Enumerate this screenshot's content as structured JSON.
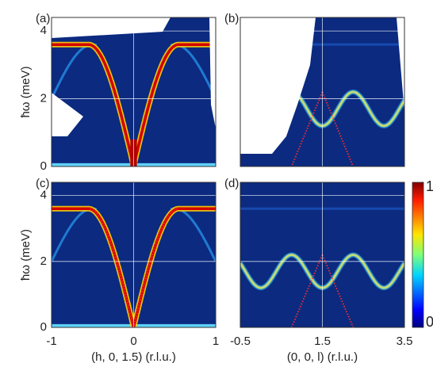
{
  "chart_data": [
    {
      "type": "heatmap",
      "panel_label": "(a)",
      "ylabel": "ħω (meV)",
      "xlim": [
        -1,
        1
      ],
      "xticks": [
        -1,
        0,
        1
      ],
      "ylim": [
        0,
        4.4
      ],
      "yticks": [
        0,
        2,
        4
      ],
      "xtick_labels": false,
      "ytick_labels": true,
      "grid": true
    },
    {
      "type": "heatmap",
      "panel_label": "(b)",
      "xlim": [
        -0.5,
        3.5
      ],
      "xticks": [
        -0.5,
        1.5,
        3.5
      ],
      "ylim": [
        0,
        4.4
      ],
      "yticks": [
        0,
        2,
        4
      ],
      "xtick_labels": false,
      "ytick_labels": false,
      "grid": true
    },
    {
      "type": "heatmap",
      "panel_label": "(c)",
      "ylabel": "ħω (meV)",
      "xlabel": "(h, 0, 1.5) (r.l.u.)",
      "xlim": [
        -1,
        1
      ],
      "xticks": [
        -1,
        0,
        1
      ],
      "ylim": [
        0,
        4.4
      ],
      "yticks": [
        0,
        2,
        4
      ],
      "xtick_labels": true,
      "ytick_labels": true,
      "grid": true
    },
    {
      "type": "heatmap",
      "panel_label": "(d)",
      "xlabel": "(0, 0, l) (r.l.u.)",
      "xlim": [
        -0.5,
        3.5
      ],
      "xticks": [
        -0.5,
        1.5,
        3.5
      ],
      "ylim": [
        0,
        4.4
      ],
      "yticks": [
        0,
        2,
        4
      ],
      "xtick_labels": true,
      "ytick_labels": false,
      "grid": true,
      "colorbar": {
        "lim": [
          0,
          1
        ],
        "ticks": [
          0,
          1
        ]
      }
    }
  ]
}
